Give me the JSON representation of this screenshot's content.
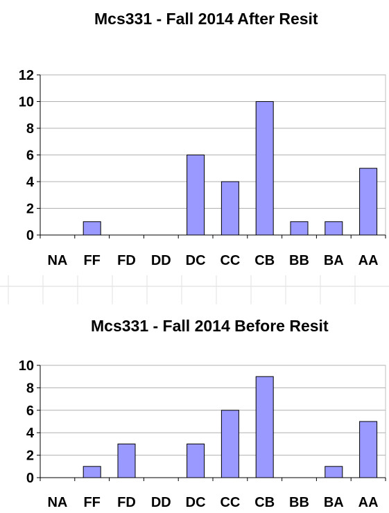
{
  "chart_data": [
    {
      "type": "bar",
      "title": "Mcs331 - Fall 2014  After Resit",
      "categories": [
        "NA",
        "FF",
        "FD",
        "DD",
        "DC",
        "CC",
        "CB",
        "BB",
        "BA",
        "AA"
      ],
      "values": [
        0,
        1,
        0,
        0,
        6,
        4,
        10,
        1,
        1,
        5
      ],
      "ylim": [
        0,
        12
      ],
      "yticks": [
        0,
        2,
        4,
        6,
        8,
        10,
        12
      ],
      "grid": true,
      "bar_color": "#9999ff",
      "xlabel": "",
      "ylabel": ""
    },
    {
      "type": "bar",
      "title": "Mcs331 - Fall 2014  Before Resit",
      "categories": [
        "NA",
        "FF",
        "FD",
        "DD",
        "DC",
        "CC",
        "CB",
        "BB",
        "BA",
        "AA"
      ],
      "values": [
        0,
        1,
        3,
        0,
        3,
        6,
        9,
        0,
        1,
        5
      ],
      "ylim": [
        0,
        10
      ],
      "yticks": [
        0,
        2,
        4,
        6,
        8,
        10
      ],
      "grid": true,
      "bar_color": "#9999ff",
      "xlabel": "",
      "ylabel": ""
    }
  ]
}
